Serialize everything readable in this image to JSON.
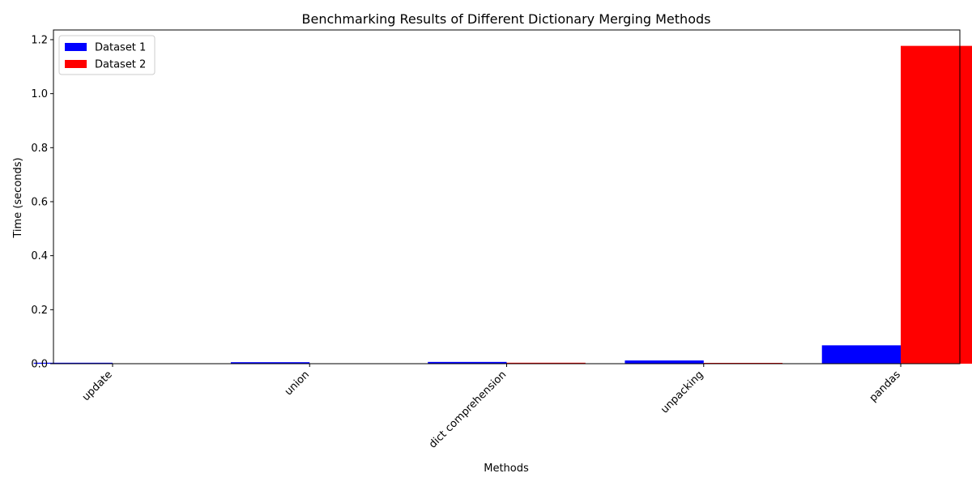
{
  "chart_data": {
    "type": "bar",
    "title": "Benchmarking Results of Different Dictionary Merging Methods",
    "xlabel": "Methods",
    "ylabel": "Time (seconds)",
    "categories": [
      "update",
      "union",
      "dict comprehension",
      "unpacking",
      "pandas"
    ],
    "series": [
      {
        "name": "Dataset 1",
        "color": "#0000ff",
        "values": [
          0.0035,
          0.0055,
          0.0065,
          0.012,
          0.068
        ]
      },
      {
        "name": "Dataset 2",
        "color": "#ff0000",
        "values": [
          0.0,
          0.0,
          0.0035,
          0.003,
          1.177
        ]
      }
    ],
    "ylim": [
      0,
      1.2359
    ],
    "yticks": [
      0.0,
      0.2,
      0.4,
      0.6,
      0.8,
      1.0,
      1.2
    ],
    "ytick_labels": [
      "0.0",
      "0.2",
      "0.4",
      "0.6",
      "0.8",
      "1.0",
      "1.2"
    ],
    "legend_position": "top-left",
    "grid": false
  }
}
